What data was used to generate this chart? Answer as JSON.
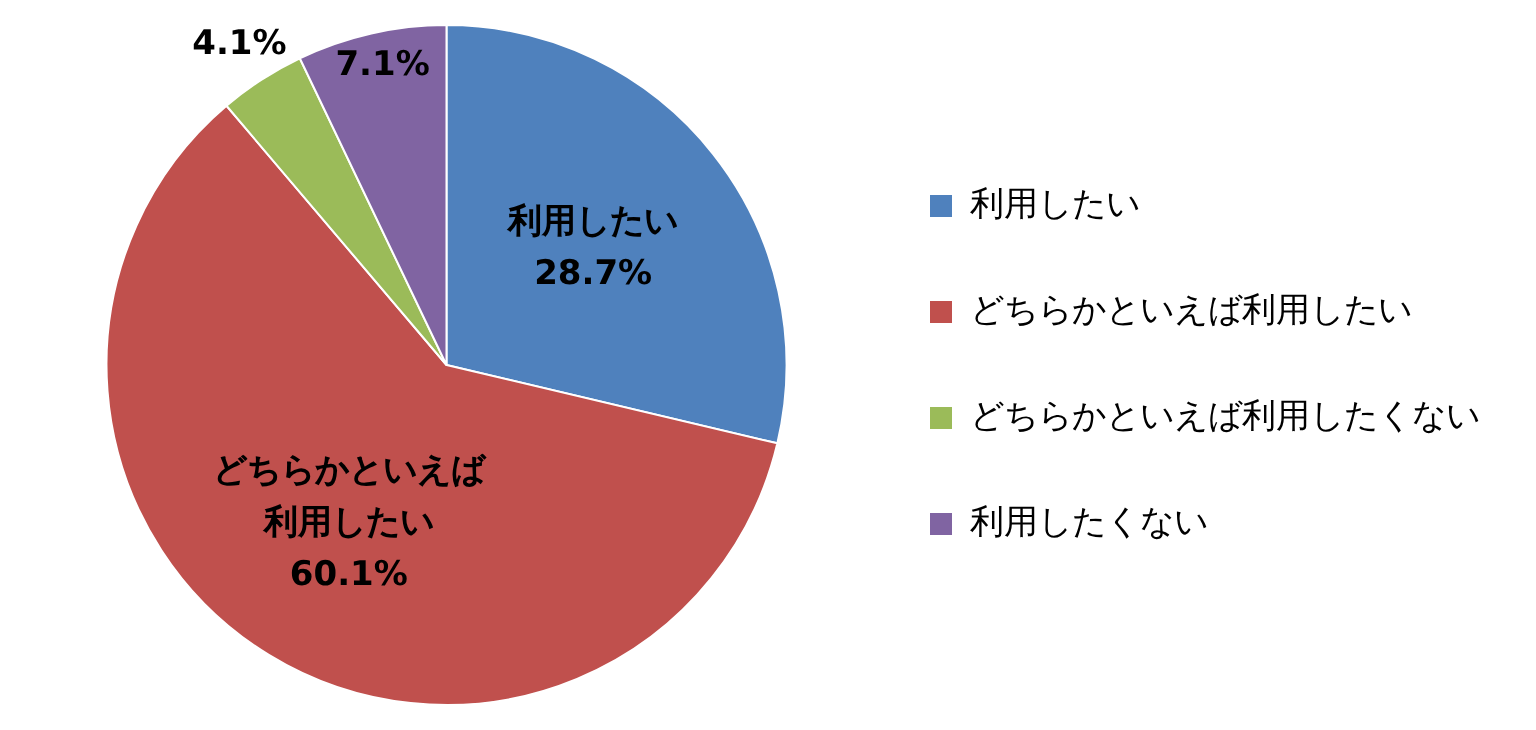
{
  "chart_data": {
    "type": "pie",
    "categories": [
      "利用したい",
      "どちらかといえば利用したい",
      "どちらかといえば利用したくない",
      "利用したくない"
    ],
    "values": [
      28.7,
      60.1,
      4.1,
      7.1
    ],
    "colors": [
      "#4f81bd",
      "#c0504d",
      "#9bbb59",
      "#8064a2"
    ],
    "value_labels": [
      "利用したい\n28.7%",
      "どちらかといえば利用したい\n60.1%",
      "4.1%",
      "7.1%"
    ],
    "legend": "right"
  }
}
